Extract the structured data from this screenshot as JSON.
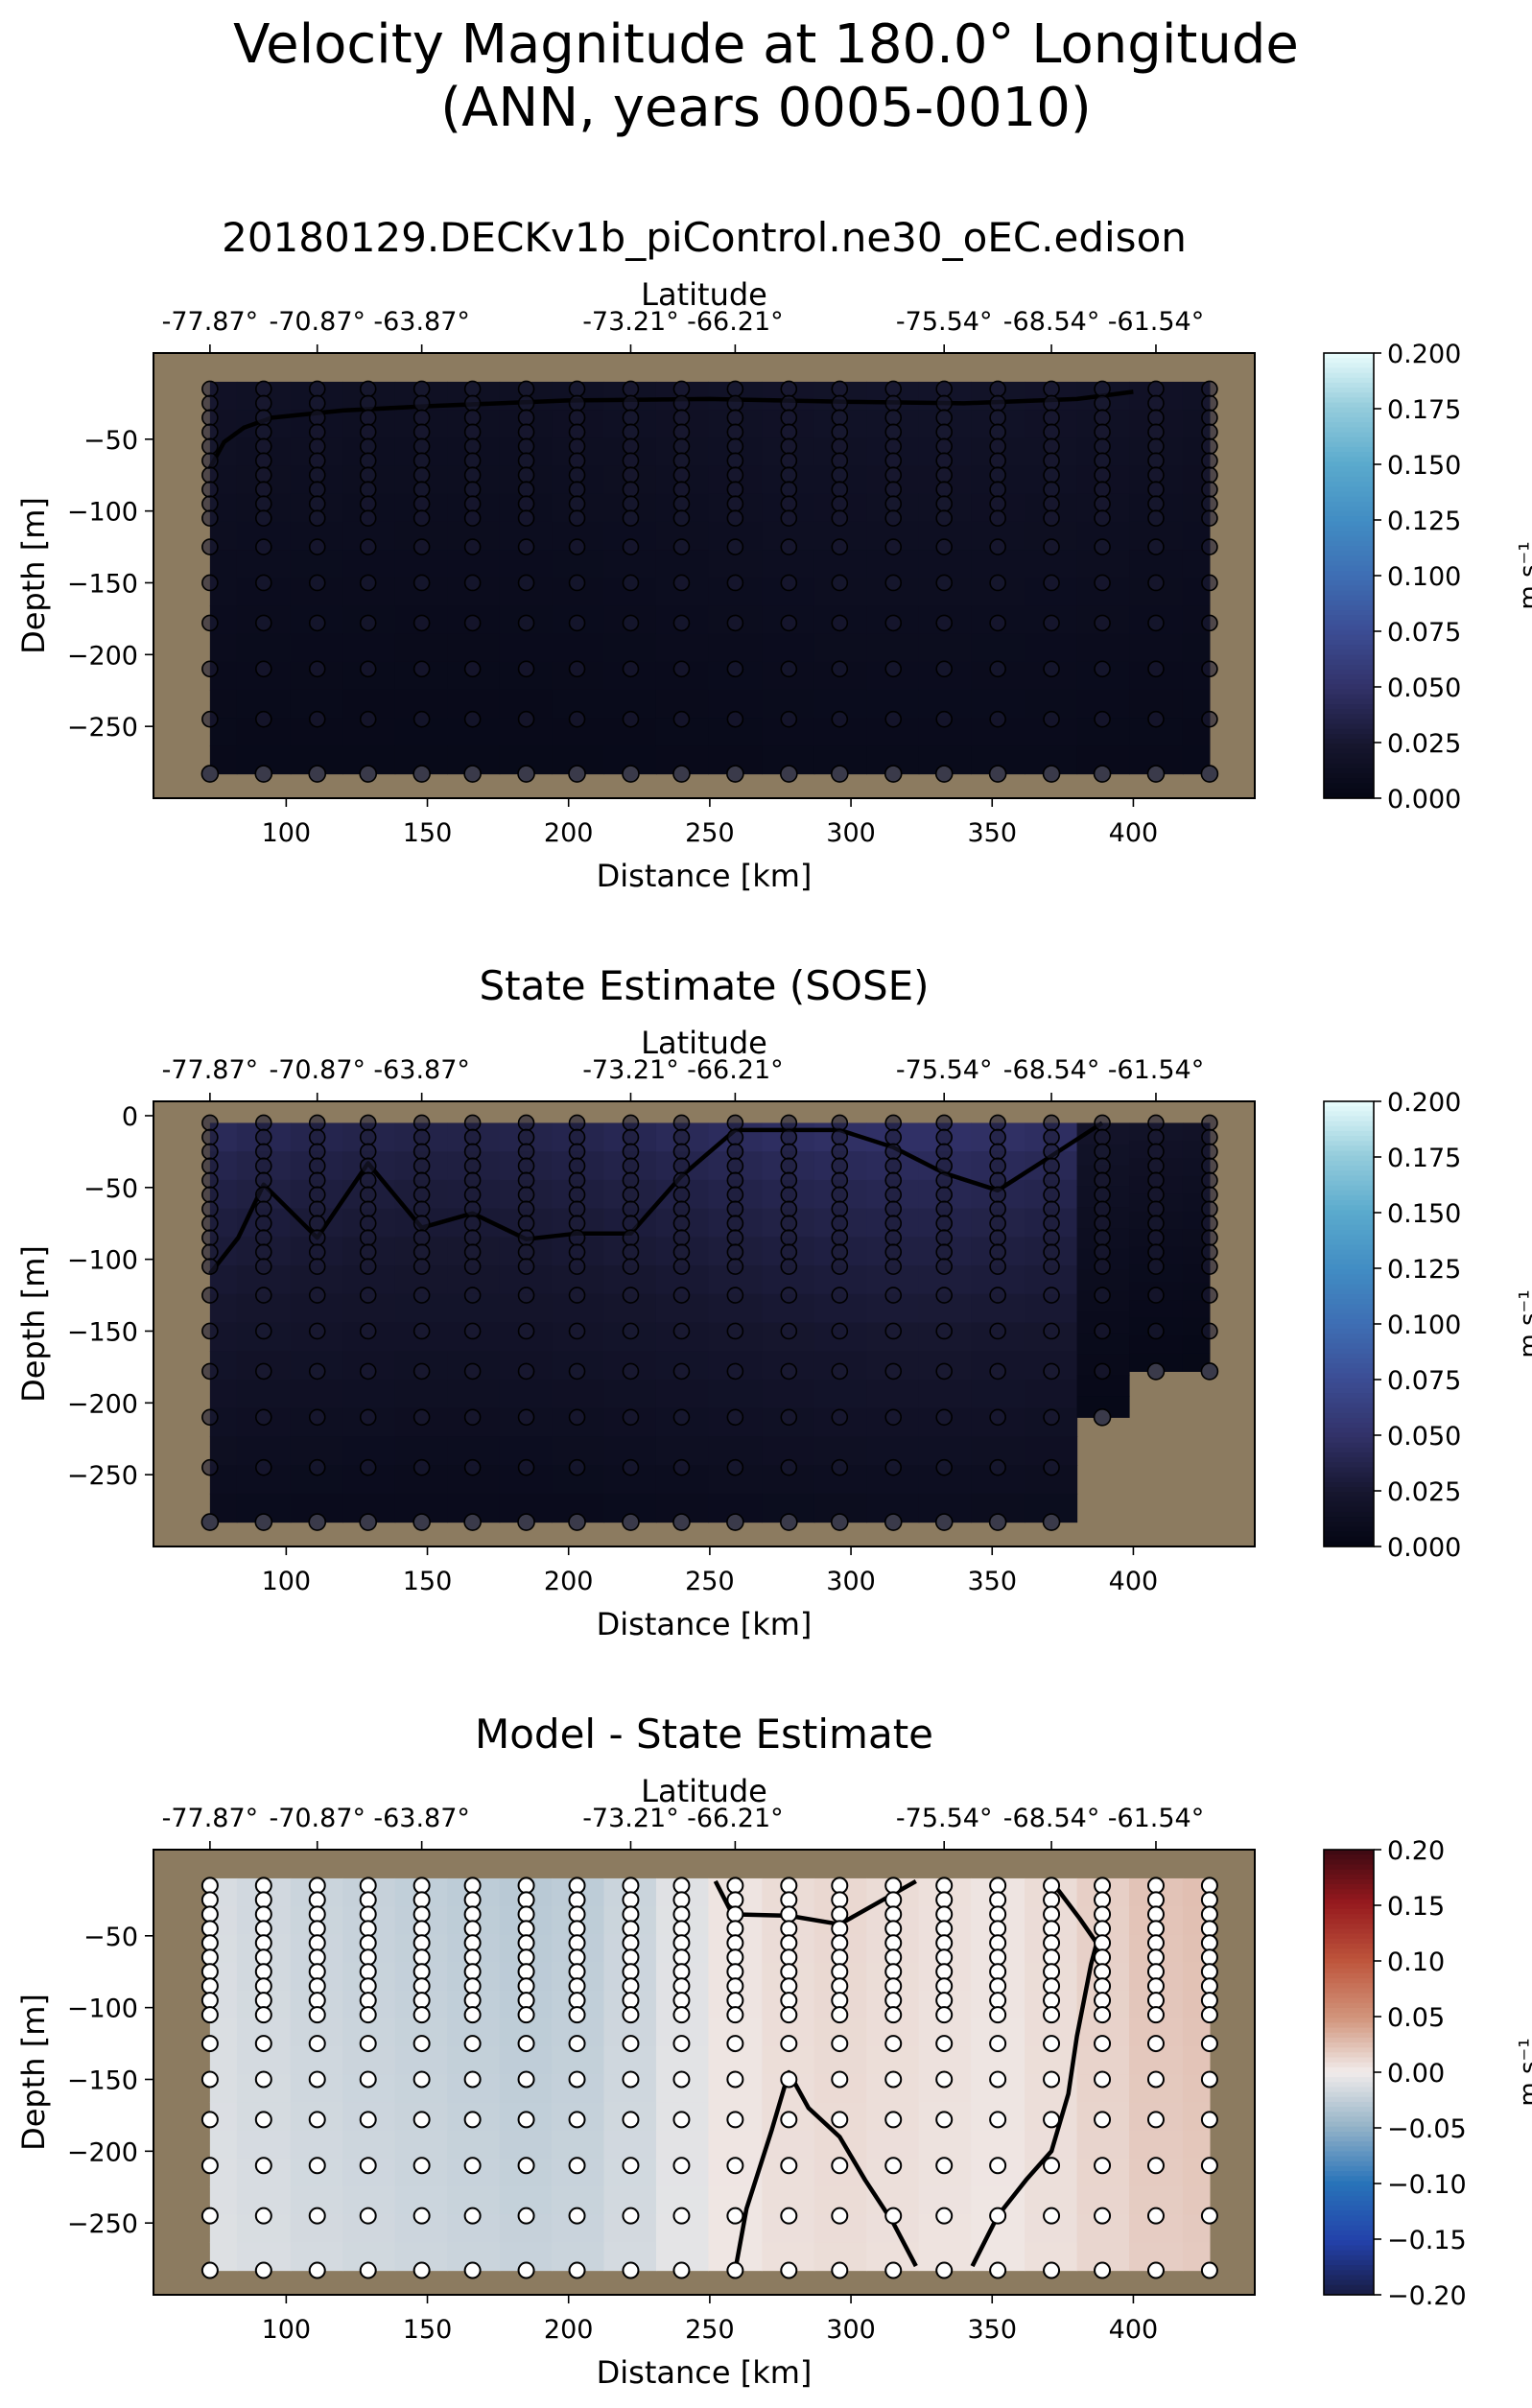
{
  "figure": {
    "title_line1": "Velocity Magnitude at 180.0° Longitude",
    "title_line2": "(ANN, years 0005-0010)"
  },
  "chart_data": [
    {
      "type": "heatmap",
      "title": "20180129.DECKv1b_piControl.ne30_oEC.edison",
      "xlabel": "Distance [km]",
      "ylabel": "Depth [m]",
      "top_axis_label": "Latitude",
      "top_ticks": [
        {
          "x": 73,
          "label": "-77.87°"
        },
        {
          "x": 111,
          "label": "-70.87°"
        },
        {
          "x": 148,
          "label": "-63.87°"
        },
        {
          "x": 222,
          "label": "-73.21°"
        },
        {
          "x": 259,
          "label": "-66.21°"
        },
        {
          "x": 333,
          "label": "-75.54°"
        },
        {
          "x": 371,
          "label": "-68.54°"
        },
        {
          "x": 408,
          "label": "-61.54°"
        }
      ],
      "xlim": [
        53,
        443
      ],
      "ylim": [
        -300,
        10
      ],
      "xticks": [
        100,
        150,
        200,
        250,
        300,
        350,
        400
      ],
      "yticks": [
        -50,
        -100,
        -150,
        -200,
        -250
      ],
      "colorbar": {
        "label": "m s⁻¹",
        "min": 0.0,
        "max": 0.2,
        "cmap": "ice",
        "ticks": [
          "0.000",
          "0.025",
          "0.050",
          "0.075",
          "0.100",
          "0.125",
          "0.150",
          "0.175",
          "0.200"
        ]
      },
      "marker_style": "filled",
      "columns_x": [
        73,
        92,
        111,
        129,
        148,
        166,
        185,
        203,
        222,
        240,
        259,
        278,
        296,
        315,
        333,
        352,
        371,
        389,
        408,
        427
      ],
      "levels": [
        -15,
        -25,
        -35,
        -45,
        -55,
        -65,
        -75,
        -85,
        -95,
        -105,
        -125,
        -150,
        -178,
        -210,
        -245,
        -283
      ],
      "bottom_depth": [
        -283,
        -283,
        -283,
        -283,
        -283,
        -283,
        -283,
        -283,
        -283,
        -283,
        -283,
        -283,
        -283,
        -283,
        -283,
        -283,
        -283,
        -283,
        -283,
        -283
      ],
      "field": {
        "surface": 0.018,
        "deep": 0.006,
        "top_edge": -10
      },
      "contour": [
        [
          73,
          -70
        ],
        [
          78,
          -52
        ],
        [
          85,
          -42
        ],
        [
          95,
          -35
        ],
        [
          120,
          -30
        ],
        [
          150,
          -27
        ],
        [
          200,
          -23
        ],
        [
          250,
          -22
        ],
        [
          300,
          -24
        ],
        [
          340,
          -25
        ],
        [
          380,
          -22
        ],
        [
          400,
          -17
        ]
      ]
    },
    {
      "type": "heatmap",
      "title": "State Estimate (SOSE)",
      "xlabel": "Distance [km]",
      "ylabel": "Depth [m]",
      "top_axis_label": "Latitude",
      "top_ticks": [
        {
          "x": 73,
          "label": "-77.87°"
        },
        {
          "x": 111,
          "label": "-70.87°"
        },
        {
          "x": 148,
          "label": "-63.87°"
        },
        {
          "x": 222,
          "label": "-73.21°"
        },
        {
          "x": 259,
          "label": "-66.21°"
        },
        {
          "x": 333,
          "label": "-75.54°"
        },
        {
          "x": 371,
          "label": "-68.54°"
        },
        {
          "x": 408,
          "label": "-61.54°"
        }
      ],
      "xlim": [
        53,
        443
      ],
      "ylim": [
        -300,
        10
      ],
      "xticks": [
        100,
        150,
        200,
        250,
        300,
        350,
        400
      ],
      "yticks": [
        0,
        -50,
        -100,
        -150,
        -200,
        -250
      ],
      "colorbar": {
        "label": "m s⁻¹",
        "min": 0.0,
        "max": 0.2,
        "cmap": "ice",
        "ticks": [
          "0.000",
          "0.025",
          "0.050",
          "0.075",
          "0.100",
          "0.125",
          "0.150",
          "0.175",
          "0.200"
        ]
      },
      "marker_style": "filled",
      "columns_x": [
        73,
        92,
        111,
        129,
        148,
        166,
        185,
        203,
        222,
        240,
        259,
        278,
        296,
        315,
        333,
        352,
        371,
        389,
        408,
        427
      ],
      "levels": [
        -5,
        -15,
        -25,
        -35,
        -45,
        -55,
        -65,
        -75,
        -85,
        -95,
        -105,
        -125,
        -150,
        -178,
        -210,
        -245,
        -283
      ],
      "bottom_depth": [
        -283,
        -283,
        -283,
        -283,
        -283,
        -283,
        -283,
        -283,
        -283,
        -283,
        -283,
        -283,
        -283,
        -283,
        -283,
        -283,
        -283,
        -210,
        -178,
        -178
      ],
      "field": {
        "surface": 0.046,
        "deep": 0.008,
        "top_edge": -5
      },
      "contour": [
        [
          73,
          -110
        ],
        [
          83,
          -85
        ],
        [
          92,
          -48
        ],
        [
          111,
          -85
        ],
        [
          129,
          -33
        ],
        [
          148,
          -78
        ],
        [
          166,
          -68
        ],
        [
          185,
          -86
        ],
        [
          203,
          -82
        ],
        [
          222,
          -82
        ],
        [
          240,
          -42
        ],
        [
          259,
          -10
        ],
        [
          278,
          -10
        ],
        [
          296,
          -10
        ],
        [
          315,
          -22
        ],
        [
          333,
          -40
        ],
        [
          352,
          -52
        ],
        [
          371,
          -28
        ],
        [
          389,
          -5
        ]
      ]
    },
    {
      "type": "heatmap",
      "title": "Model - State Estimate",
      "xlabel": "Distance [km]",
      "ylabel": "Depth [m]",
      "top_axis_label": "Latitude",
      "top_ticks": [
        {
          "x": 73,
          "label": "-77.87°"
        },
        {
          "x": 111,
          "label": "-70.87°"
        },
        {
          "x": 148,
          "label": "-63.87°"
        },
        {
          "x": 222,
          "label": "-73.21°"
        },
        {
          "x": 259,
          "label": "-66.21°"
        },
        {
          "x": 333,
          "label": "-75.54°"
        },
        {
          "x": 371,
          "label": "-68.54°"
        },
        {
          "x": 408,
          "label": "-61.54°"
        }
      ],
      "xlim": [
        53,
        443
      ],
      "ylim": [
        -300,
        10
      ],
      "xticks": [
        100,
        150,
        200,
        250,
        300,
        350,
        400
      ],
      "yticks": [
        -50,
        -100,
        -150,
        -200,
        -250
      ],
      "colorbar": {
        "label": "m s⁻¹",
        "min": -0.2,
        "max": 0.2,
        "cmap": "balance",
        "ticks": [
          "-0.20",
          "-0.15",
          "-0.10",
          "-0.05",
          "0.00",
          "0.05",
          "0.10",
          "0.15",
          "0.20"
        ]
      },
      "marker_style": "open",
      "columns_x": [
        73,
        92,
        111,
        129,
        148,
        166,
        185,
        203,
        222,
        240,
        259,
        278,
        296,
        315,
        333,
        352,
        371,
        389,
        408,
        427
      ],
      "levels": [
        -15,
        -25,
        -35,
        -45,
        -55,
        -65,
        -75,
        -85,
        -95,
        -105,
        -125,
        -150,
        -178,
        -210,
        -245,
        -283
      ],
      "bottom_depth": [
        -283,
        -283,
        -283,
        -283,
        -283,
        -283,
        -283,
        -283,
        -283,
        -283,
        -283,
        -283,
        -283,
        -283,
        -283,
        -283,
        -283,
        -283,
        -283,
        -283
      ],
      "field": {
        "top_edge": -10,
        "col_values": [
          -0.012,
          -0.015,
          -0.018,
          -0.02,
          -0.022,
          -0.024,
          -0.026,
          -0.024,
          -0.018,
          -0.008,
          0.004,
          0.008,
          0.01,
          0.008,
          0.006,
          0.004,
          0.008,
          0.014,
          0.02,
          0.022
        ]
      },
      "contours": [
        [
          [
            252,
            -12
          ],
          [
            258,
            -35
          ],
          [
            278,
            -36
          ],
          [
            296,
            -42
          ],
          [
            323,
            -12
          ]
        ],
        [
          [
            259,
            -283
          ],
          [
            263,
            -240
          ],
          [
            272,
            -185
          ],
          [
            278,
            -145
          ],
          [
            285,
            -170
          ],
          [
            296,
            -190
          ],
          [
            305,
            -220
          ],
          [
            315,
            -250
          ],
          [
            323,
            -280
          ]
        ],
        [
          [
            343,
            -280
          ],
          [
            352,
            -245
          ],
          [
            362,
            -220
          ],
          [
            371,
            -200
          ],
          [
            377,
            -160
          ],
          [
            380,
            -120
          ],
          [
            385,
            -70
          ],
          [
            387,
            -55
          ],
          [
            381,
            -38
          ],
          [
            371,
            -12
          ]
        ]
      ]
    }
  ]
}
